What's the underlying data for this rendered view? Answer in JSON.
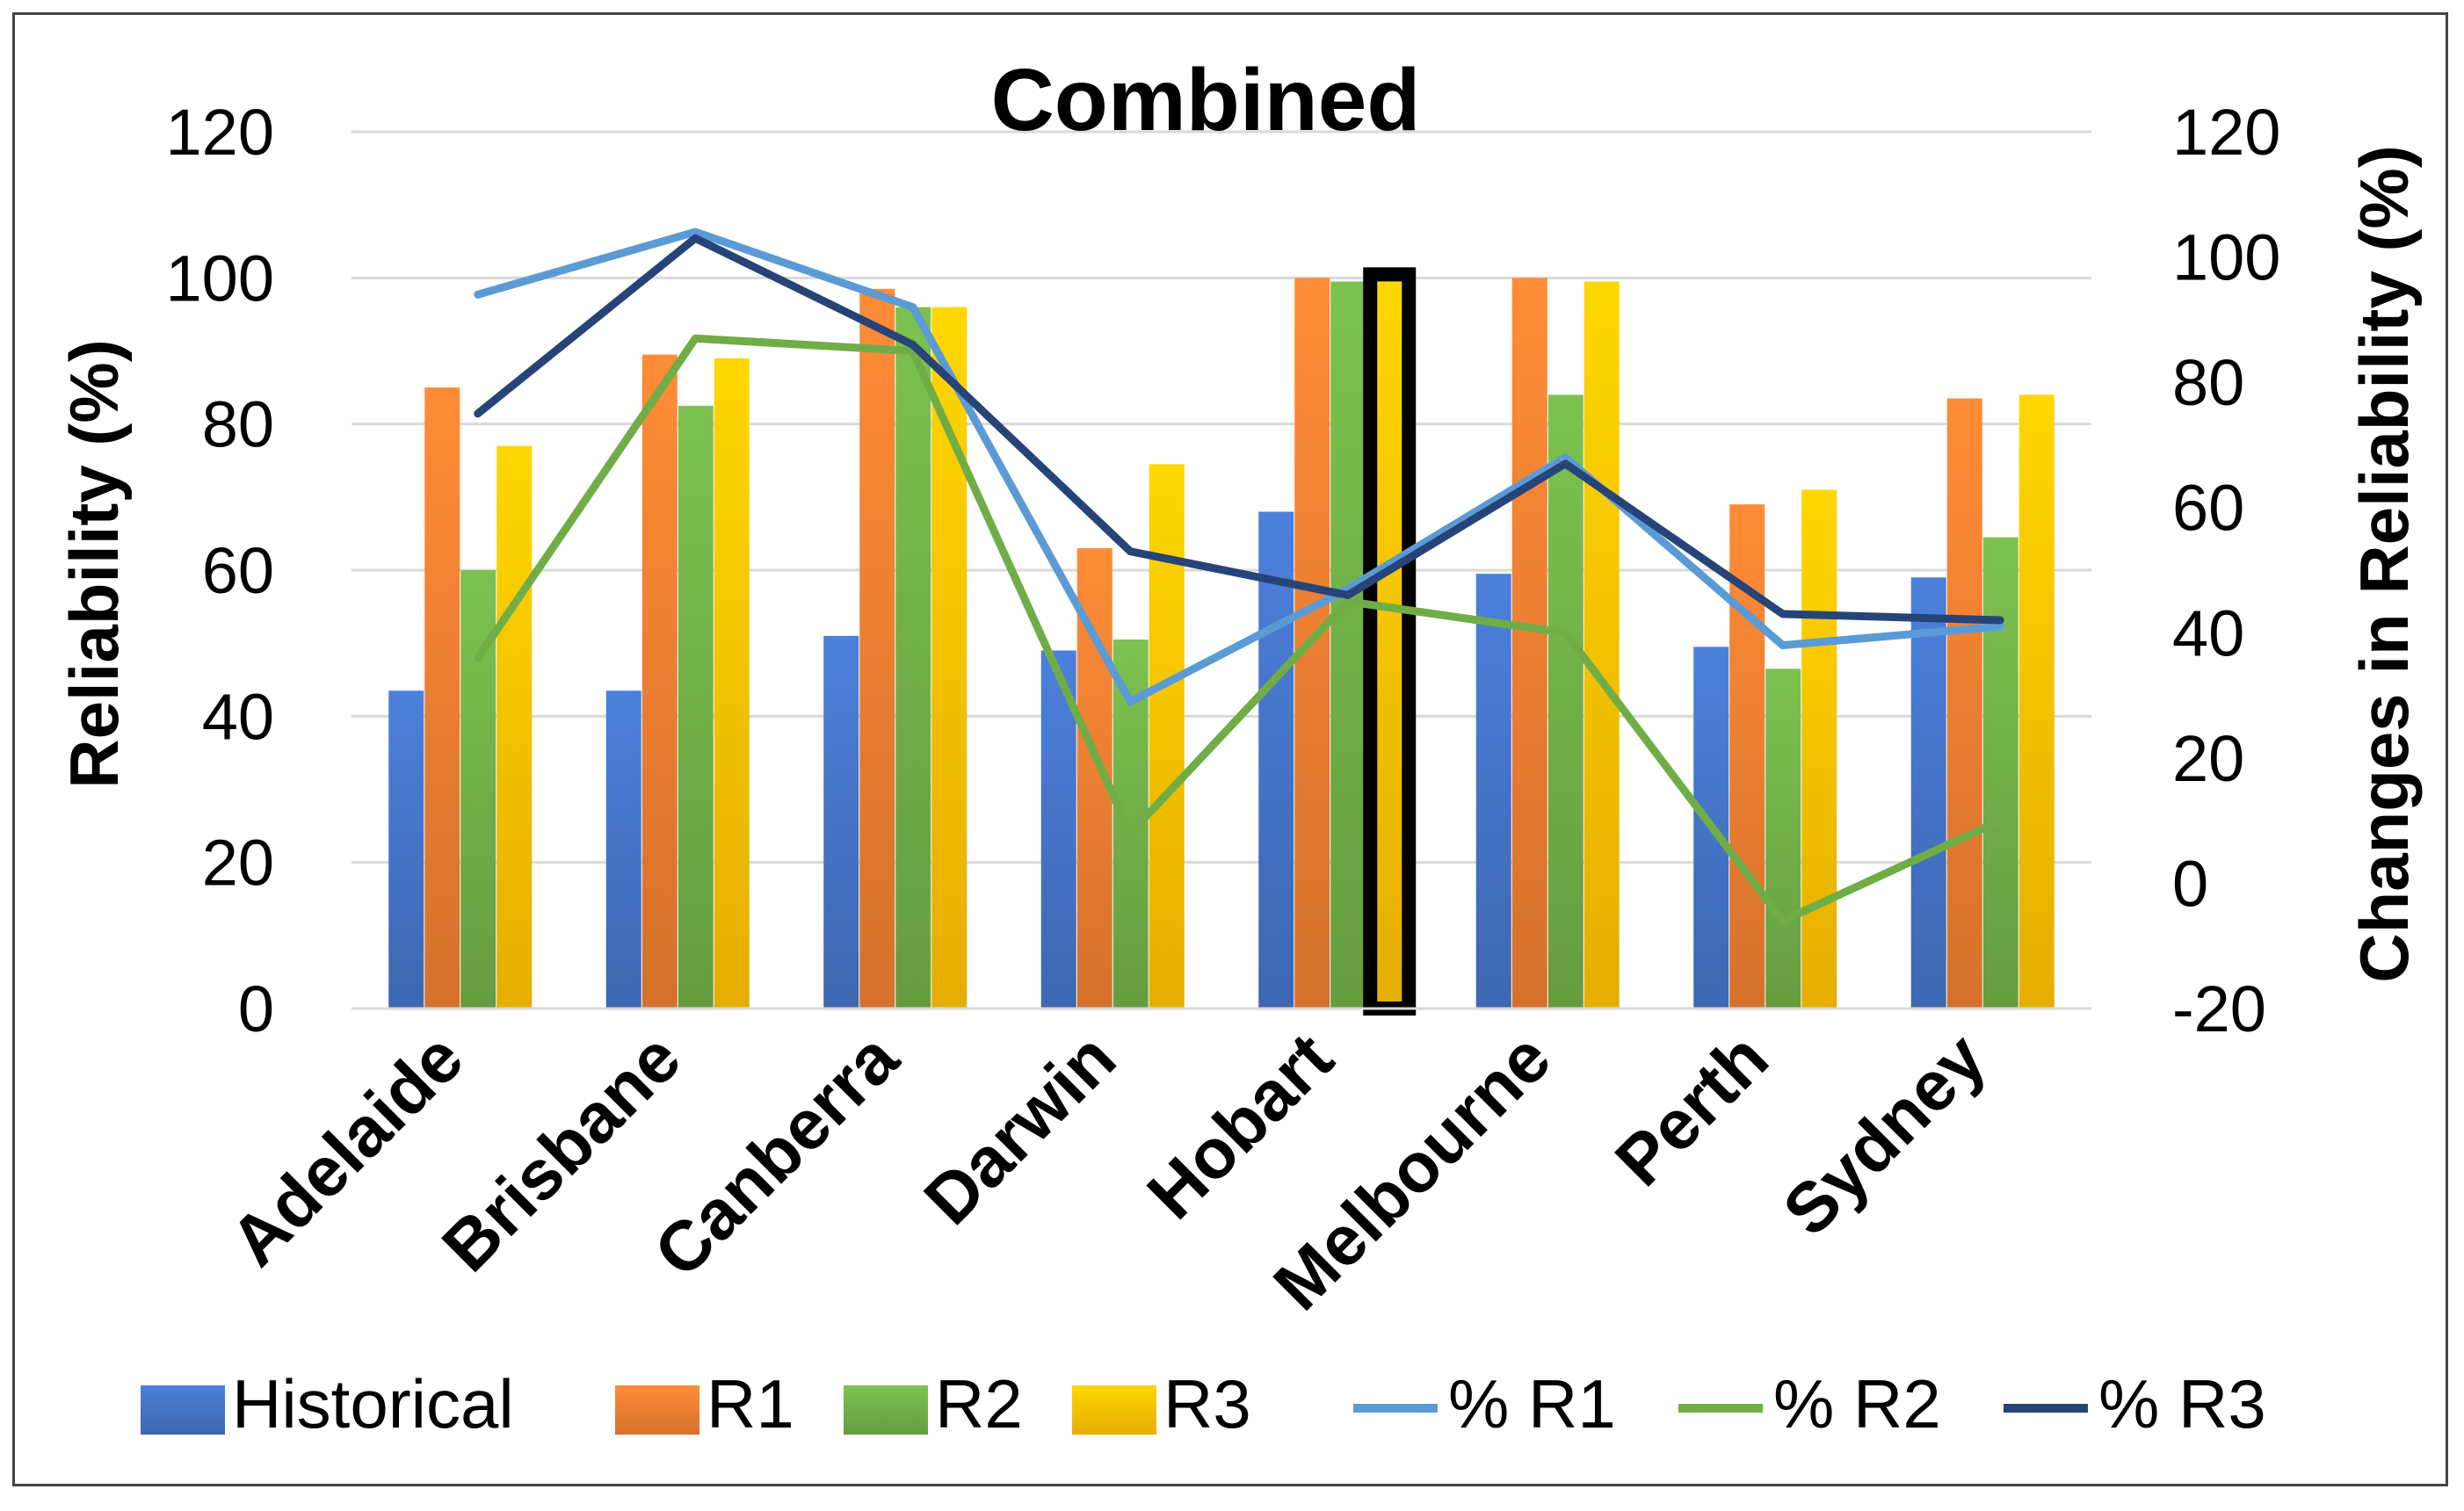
{
  "chart_data": {
    "type": "bar",
    "title": "Combined",
    "xlabel": "",
    "ylabel": "Reliability (%)",
    "y2label": "Changes in Reliability (%)",
    "ylim": [
      0,
      120
    ],
    "y2lim": [
      -20,
      120
    ],
    "yticks": [
      "0",
      "20",
      "40",
      "60",
      "80",
      "100",
      "120"
    ],
    "y2ticks": [
      "-20",
      "0",
      "20",
      "40",
      "60",
      "80",
      "100",
      "120"
    ],
    "grid": true,
    "legend_position": "bottom",
    "categories": [
      "Adelaide",
      "Brisbane",
      "Canberra",
      "Darwin",
      "Hobart",
      "Melbourne",
      "Perth",
      "Sydney"
    ],
    "bar_series": [
      {
        "name": "Historical",
        "color": "#4472C4",
        "values": [
          43.5,
          43.5,
          51,
          49,
          68,
          59.5,
          49.5,
          59
        ]
      },
      {
        "name": "R1",
        "color": "#ED7D31",
        "values": [
          85,
          89.5,
          98.5,
          63,
          100,
          100,
          69,
          83.5
        ]
      },
      {
        "name": "R2",
        "color": "#70AD47",
        "values": [
          60,
          82.5,
          96,
          50.5,
          99.5,
          84,
          46.5,
          64.5
        ]
      },
      {
        "name": "R3",
        "color": "#FFC000",
        "values": [
          77,
          89,
          96,
          74.5,
          100,
          99.5,
          71,
          84
        ]
      }
    ],
    "line_series": [
      {
        "name": "% R1",
        "color": "#5B9BD5",
        "axis": "right",
        "values": [
          94,
          104,
          92,
          29,
          47,
          68,
          38,
          41
        ]
      },
      {
        "name": "% R2",
        "color": "#70AD47",
        "axis": "right",
        "values": [
          36,
          87,
          85,
          8,
          45,
          40,
          -6,
          10
        ]
      },
      {
        "name": "% R3",
        "color": "#264478",
        "axis": "right",
        "values": [
          75,
          103,
          86,
          53,
          46,
          67,
          43,
          42
        ]
      }
    ],
    "highlight": {
      "category": "Hobart",
      "series": "R3",
      "note": "black outline around bar"
    }
  }
}
